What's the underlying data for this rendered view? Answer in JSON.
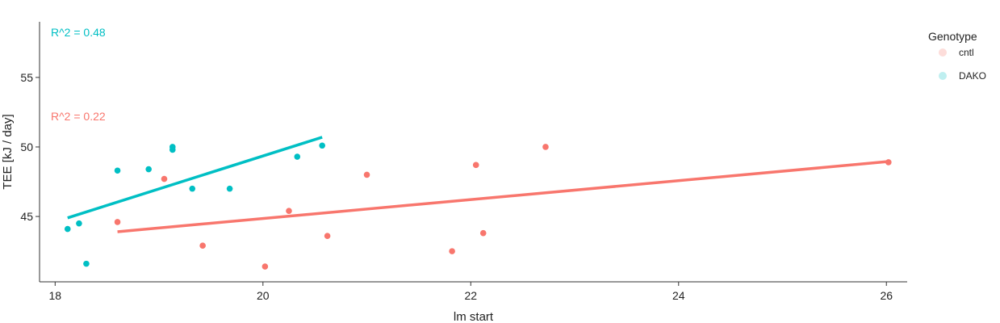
{
  "chart_data": {
    "type": "scatter",
    "xlabel": "lm start",
    "ylabel": "TEE [kJ / day]",
    "xlim": [
      17.85,
      26.2
    ],
    "ylim": [
      40.3,
      59.0
    ],
    "xticks": [
      18,
      20,
      22,
      24,
      26
    ],
    "yticks": [
      45,
      50,
      55
    ],
    "grid": false,
    "legend": {
      "title": "Genotype",
      "position": "top-right",
      "entries": [
        {
          "label": "cntl",
          "color": "#F8766D"
        },
        {
          "label": "DAKO",
          "color": "#00BFC4"
        }
      ]
    },
    "series": [
      {
        "label": "cntl",
        "color": "#F8766D",
        "points": [
          {
            "x": 18.6,
            "y": 44.6
          },
          {
            "x": 19.05,
            "y": 47.7
          },
          {
            "x": 19.42,
            "y": 42.9
          },
          {
            "x": 20.02,
            "y": 41.4
          },
          {
            "x": 20.25,
            "y": 45.4
          },
          {
            "x": 20.62,
            "y": 43.6
          },
          {
            "x": 21.0,
            "y": 48.0
          },
          {
            "x": 21.82,
            "y": 42.5
          },
          {
            "x": 22.05,
            "y": 48.7
          },
          {
            "x": 22.12,
            "y": 43.8
          },
          {
            "x": 22.72,
            "y": 50.0
          },
          {
            "x": 26.02,
            "y": 48.9
          }
        ],
        "fit_line": {
          "x": [
            18.6,
            26.02
          ],
          "y": [
            43.9,
            48.95
          ]
        },
        "annotation": "R^2 = 0.22"
      },
      {
        "label": "DAKO",
        "color": "#00BFC4",
        "points": [
          {
            "x": 18.12,
            "y": 44.1
          },
          {
            "x": 18.23,
            "y": 44.5
          },
          {
            "x": 18.3,
            "y": 41.6
          },
          {
            "x": 18.6,
            "y": 48.3
          },
          {
            "x": 18.9,
            "y": 48.4
          },
          {
            "x": 19.13,
            "y": 50.0
          },
          {
            "x": 19.13,
            "y": 49.8
          },
          {
            "x": 19.32,
            "y": 47.0
          },
          {
            "x": 19.68,
            "y": 47.0
          },
          {
            "x": 20.33,
            "y": 49.3
          },
          {
            "x": 20.57,
            "y": 50.1
          }
        ],
        "fit_line": {
          "x": [
            18.12,
            20.57
          ],
          "y": [
            44.9,
            50.7
          ]
        },
        "annotation": "R^2 = 0.48"
      }
    ]
  }
}
